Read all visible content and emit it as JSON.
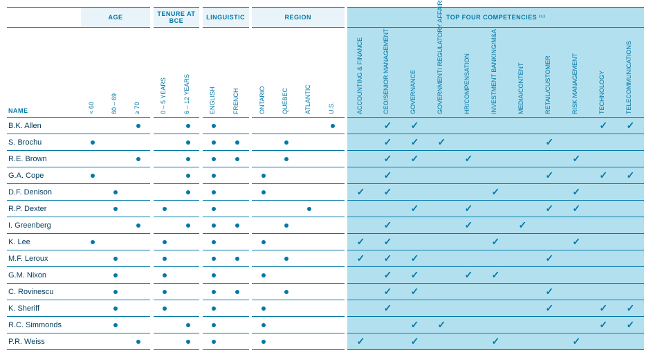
{
  "labels": {
    "name": "NAME",
    "groups": {
      "age": "AGE",
      "tenure": "TENURE AT BCE",
      "linguistic": "LINGUISTIC",
      "region": "REGION",
      "competencies": "TOP FOUR COMPETENCIES ⁽¹⁾"
    },
    "cols": {
      "age_under60": "< 60",
      "age_60_69": "60 – 69",
      "age_70plus": "≥ 70",
      "tenure_0_5": "0 – 5 YEARS",
      "tenure_6_12": "6 – 12 YEARS",
      "english": "ENGLISH",
      "french": "FRENCH",
      "ontario": "ONTARIO",
      "quebec": "QUÉBEC",
      "atlantic": "ATLANTIC",
      "us": "U.S.",
      "c_acct": "ACCOUNTING & FINANCE",
      "c_ceo": "CEO/SENIOR MANAGEMENT",
      "c_gov": "GOVERNANCE",
      "c_reg": "GOVERNMENT/\nREGULATORY AFFAIRS",
      "c_hr": "HR/COMPENSATION",
      "c_inv": "INVESTMENT BANKING/M&A",
      "c_media": "MEDIA/CONTENT",
      "c_retail": "RETAIL/CUSTOMER",
      "c_risk": "RISK MANAGEMENT",
      "c_tech": "TECHNOLOGY",
      "c_telecom": "TELECOMMUNICATIONS"
    }
  },
  "attr_cols": [
    "age_under60",
    "age_60_69",
    "age_70plus",
    "tenure_0_5",
    "tenure_6_12",
    "english",
    "french",
    "ontario",
    "quebec",
    "atlantic",
    "us"
  ],
  "comp_cols": [
    "c_acct",
    "c_ceo",
    "c_gov",
    "c_reg",
    "c_hr",
    "c_inv",
    "c_media",
    "c_retail",
    "c_risk",
    "c_tech",
    "c_telecom"
  ],
  "rows": [
    {
      "name": "B.K. Allen",
      "attrs": {
        "age_70plus": true,
        "tenure_6_12": true,
        "english": true,
        "us": true
      },
      "comps": {
        "c_ceo": true,
        "c_gov": true,
        "c_tech": true,
        "c_telecom": true
      }
    },
    {
      "name": "S. Brochu",
      "attrs": {
        "age_under60": true,
        "tenure_6_12": true,
        "english": true,
        "french": true,
        "quebec": true
      },
      "comps": {
        "c_ceo": true,
        "c_gov": true,
        "c_reg": true,
        "c_retail": true
      }
    },
    {
      "name": "R.E. Brown",
      "attrs": {
        "age_70plus": true,
        "tenure_6_12": true,
        "english": true,
        "french": true,
        "quebec": true
      },
      "comps": {
        "c_ceo": true,
        "c_gov": true,
        "c_hr": true,
        "c_risk": true
      }
    },
    {
      "name": "G.A. Cope",
      "attrs": {
        "age_under60": true,
        "tenure_6_12": true,
        "english": true,
        "ontario": true
      },
      "comps": {
        "c_ceo": true,
        "c_retail": true,
        "c_tech": true,
        "c_telecom": true
      }
    },
    {
      "name": "D.F. Denison",
      "attrs": {
        "age_60_69": true,
        "tenure_6_12": true,
        "english": true,
        "ontario": true
      },
      "comps": {
        "c_acct": true,
        "c_ceo": true,
        "c_inv": true,
        "c_risk": true
      }
    },
    {
      "name": "R.P. Dexter",
      "attrs": {
        "age_60_69": true,
        "tenure_0_5": true,
        "english": true,
        "atlantic": true
      },
      "comps": {
        "c_gov": true,
        "c_hr": true,
        "c_retail": true,
        "c_risk": true
      }
    },
    {
      "name": "I. Greenberg",
      "attrs": {
        "age_70plus": true,
        "tenure_6_12": true,
        "english": true,
        "french": true,
        "quebec": true
      },
      "comps": {
        "c_ceo": true,
        "c_hr": true,
        "c_media": true
      }
    },
    {
      "name": "K. Lee",
      "attrs": {
        "age_under60": true,
        "tenure_0_5": true,
        "english": true,
        "ontario": true
      },
      "comps": {
        "c_acct": true,
        "c_ceo": true,
        "c_inv": true,
        "c_risk": true
      }
    },
    {
      "name": "M.F. Leroux",
      "attrs": {
        "age_60_69": true,
        "tenure_0_5": true,
        "english": true,
        "french": true,
        "quebec": true
      },
      "comps": {
        "c_acct": true,
        "c_ceo": true,
        "c_gov": true,
        "c_retail": true
      }
    },
    {
      "name": "G.M. Nixon",
      "attrs": {
        "age_60_69": true,
        "tenure_0_5": true,
        "english": true,
        "ontario": true
      },
      "comps": {
        "c_ceo": true,
        "c_gov": true,
        "c_hr": true,
        "c_inv": true
      }
    },
    {
      "name": "C. Rovinescu",
      "attrs": {
        "age_60_69": true,
        "tenure_0_5": true,
        "english": true,
        "french": true,
        "quebec": true
      },
      "comps": {
        "c_ceo": true,
        "c_gov": true,
        "c_retail": true
      }
    },
    {
      "name": "K. Sheriff",
      "attrs": {
        "age_60_69": true,
        "tenure_0_5": true,
        "english": true,
        "ontario": true
      },
      "comps": {
        "c_ceo": true,
        "c_retail": true,
        "c_tech": true,
        "c_telecom": true
      }
    },
    {
      "name": "R.C. Simmonds",
      "attrs": {
        "age_60_69": true,
        "tenure_6_12": true,
        "english": true,
        "ontario": true
      },
      "comps": {
        "c_gov": true,
        "c_reg": true,
        "c_tech": true,
        "c_telecom": true
      }
    },
    {
      "name": "P.R. Weiss",
      "attrs": {
        "age_70plus": true,
        "tenure_6_12": true,
        "english": true,
        "ontario": true
      },
      "comps": {
        "c_acct": true,
        "c_gov": true,
        "c_inv": true,
        "c_risk": true
      }
    }
  ]
}
